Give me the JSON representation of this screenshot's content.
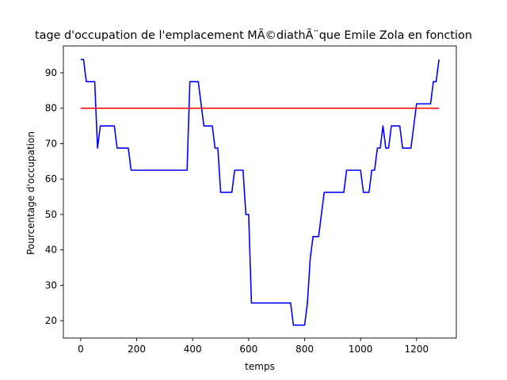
{
  "chart_data": {
    "type": "line",
    "title": "tage d'occupation de l'emplacement MÃ©diathÃ¨que Emile Zola en fonction",
    "xlabel": "temps",
    "ylabel": "Pourcentage d'occupation",
    "xlim": [
      -62,
      1342
    ],
    "ylim": [
      15.1,
      97.6
    ],
    "xticks": [
      0,
      200,
      400,
      600,
      800,
      1000,
      1200
    ],
    "yticks": [
      20,
      30,
      40,
      50,
      60,
      70,
      80,
      90
    ],
    "grid": false,
    "series": [
      {
        "color": "#0000ff",
        "x": [
          0,
          10,
          20,
          30,
          40,
          50,
          60,
          70,
          80,
          90,
          100,
          110,
          120,
          130,
          140,
          150,
          160,
          170,
          180,
          190,
          200,
          210,
          220,
          230,
          240,
          250,
          260,
          270,
          280,
          290,
          300,
          310,
          320,
          330,
          340,
          350,
          360,
          370,
          380,
          390,
          400,
          410,
          420,
          430,
          440,
          450,
          460,
          470,
          480,
          490,
          500,
          510,
          520,
          530,
          540,
          550,
          560,
          570,
          580,
          590,
          600,
          610,
          620,
          630,
          640,
          650,
          660,
          670,
          680,
          690,
          700,
          710,
          720,
          730,
          740,
          750,
          760,
          770,
          780,
          790,
          800,
          810,
          820,
          830,
          840,
          850,
          860,
          870,
          880,
          890,
          900,
          910,
          920,
          930,
          940,
          950,
          960,
          970,
          980,
          990,
          1000,
          1010,
          1020,
          1030,
          1040,
          1050,
          1060,
          1070,
          1080,
          1090,
          1100,
          1110,
          1120,
          1130,
          1140,
          1150,
          1160,
          1170,
          1180,
          1190,
          1200,
          1210,
          1220,
          1230,
          1240,
          1250,
          1260,
          1270,
          1280
        ],
        "y": [
          93.75,
          93.75,
          87.5,
          87.5,
          87.5,
          87.5,
          68.75,
          75,
          75,
          75,
          75,
          75,
          75,
          68.75,
          68.75,
          68.75,
          68.75,
          68.75,
          62.5,
          62.5,
          62.5,
          62.5,
          62.5,
          62.5,
          62.5,
          62.5,
          62.5,
          62.5,
          62.5,
          62.5,
          62.5,
          62.5,
          62.5,
          62.5,
          62.5,
          62.5,
          62.5,
          62.5,
          62.5,
          87.5,
          87.5,
          87.5,
          87.5,
          81.25,
          75,
          75,
          75,
          75,
          68.75,
          68.75,
          56.25,
          56.25,
          56.25,
          56.25,
          56.25,
          62.5,
          62.5,
          62.5,
          62.5,
          50,
          50,
          25,
          25,
          25,
          25,
          25,
          25,
          25,
          25,
          25,
          25,
          25,
          25,
          25,
          25,
          25,
          18.75,
          18.75,
          18.75,
          18.75,
          18.75,
          25,
          37.5,
          43.75,
          43.75,
          43.75,
          50,
          56.25,
          56.25,
          56.25,
          56.25,
          56.25,
          56.25,
          56.25,
          56.25,
          62.5,
          62.5,
          62.5,
          62.5,
          62.5,
          62.5,
          56.25,
          56.25,
          56.25,
          62.5,
          62.5,
          68.75,
          68.75,
          75,
          68.75,
          68.75,
          75,
          75,
          75,
          75,
          68.75,
          68.75,
          68.75,
          68.75,
          75,
          81.25,
          81.25,
          81.25,
          81.25,
          81.25,
          81.25,
          87.5,
          87.5,
          93.75
        ]
      },
      {
        "color": "#ff0000",
        "x": [
          0,
          1280
        ],
        "y": [
          80,
          80
        ]
      }
    ]
  }
}
